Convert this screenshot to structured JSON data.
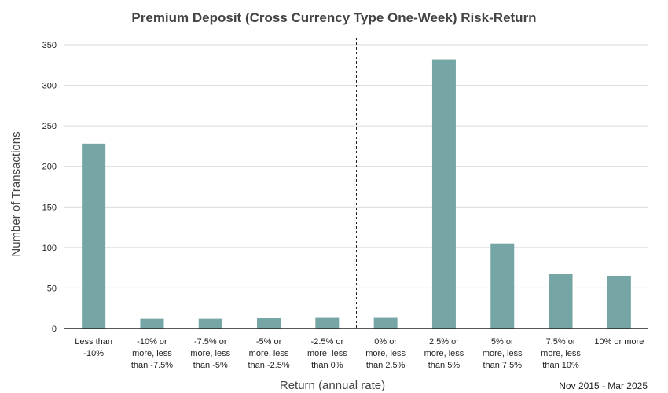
{
  "chart_data": {
    "type": "bar",
    "title": "Premium Deposit (Cross Currency Type One-Week) Risk-Return",
    "xlabel": "Return (annual rate)",
    "ylabel": "Number of Transactions",
    "ylim": [
      0,
      350
    ],
    "yticks": [
      0,
      50,
      100,
      150,
      200,
      250,
      300,
      350
    ],
    "grid": true,
    "bar_color": "#76a5a5",
    "categories": [
      [
        "Less than",
        "-10%"
      ],
      [
        "-10% or",
        "more, less",
        "than -7.5%"
      ],
      [
        "-7.5% or",
        "more, less",
        "than -5%"
      ],
      [
        "-5% or",
        "more, less",
        "than -2.5%"
      ],
      [
        "-2.5% or",
        "more, less",
        "than 0%"
      ],
      [
        "0% or",
        "more, less",
        "than 2.5%"
      ],
      [
        "2.5% or",
        "more, less",
        "than 5%"
      ],
      [
        "5% or",
        "more, less",
        "than 7.5%"
      ],
      [
        "7.5% or",
        "more, less",
        "than 10%"
      ],
      [
        "10% or more"
      ]
    ],
    "values": [
      228,
      12,
      12,
      13,
      14,
      14,
      332,
      105,
      67,
      65
    ],
    "divider_after_category_index": 4,
    "period_note": "Nov 2015 - Mar 2025"
  }
}
